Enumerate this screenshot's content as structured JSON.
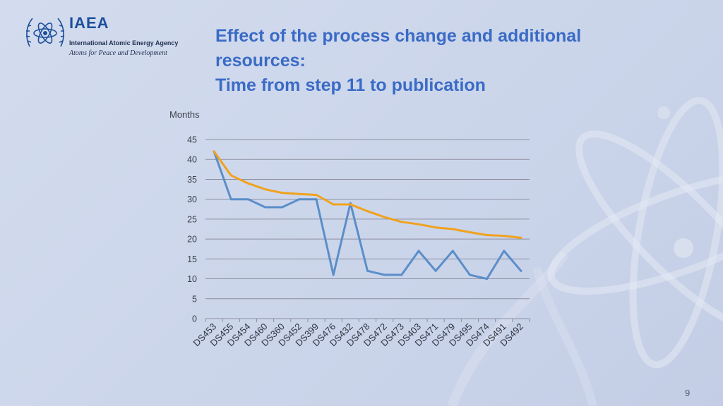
{
  "logo": {
    "title": "IAEA",
    "subtitle": "International Atomic Energy Agency",
    "tagline": "Atoms for Peace and Development"
  },
  "slide": {
    "title_lines": [
      "Effect of the process change and additional",
      "resources:",
      "Time from step 11 to publication"
    ],
    "page_number": "9"
  },
  "colors": {
    "title": "#3a6bc6",
    "series_actual": "#5b8ec9",
    "series_trend": "#f0a21e",
    "grid": "#8c8fa0"
  },
  "chart_data": {
    "type": "line",
    "ylabel": "Months",
    "xlabel": "",
    "ylim": [
      0,
      45
    ],
    "yticks": [
      0,
      5,
      10,
      15,
      20,
      25,
      30,
      35,
      40,
      45
    ],
    "grid": true,
    "legend": "none",
    "categories": [
      "DS453",
      "DS455",
      "DS454",
      "DS460",
      "DS360",
      "DS452",
      "DS399",
      "DS476",
      "DS432",
      "DS478",
      "DS472",
      "DS473",
      "DS403",
      "DS471",
      "DS479",
      "DS495",
      "DS474",
      "DS491",
      "DS492"
    ],
    "series": [
      {
        "values": [
          42,
          30,
          30,
          28,
          28,
          30,
          30,
          11,
          29,
          12,
          11,
          11,
          17,
          12,
          17,
          11,
          10,
          17,
          12
        ],
        "color": "#5b8ec9"
      },
      {
        "values": [
          42,
          36,
          34,
          32.5,
          31.6,
          31.3,
          31.1,
          28.7,
          28.7,
          27,
          25.5,
          24.3,
          23.7,
          22.9,
          22.5,
          21.7,
          21,
          20.8,
          20.3
        ],
        "color": "#f0a21e"
      }
    ]
  }
}
